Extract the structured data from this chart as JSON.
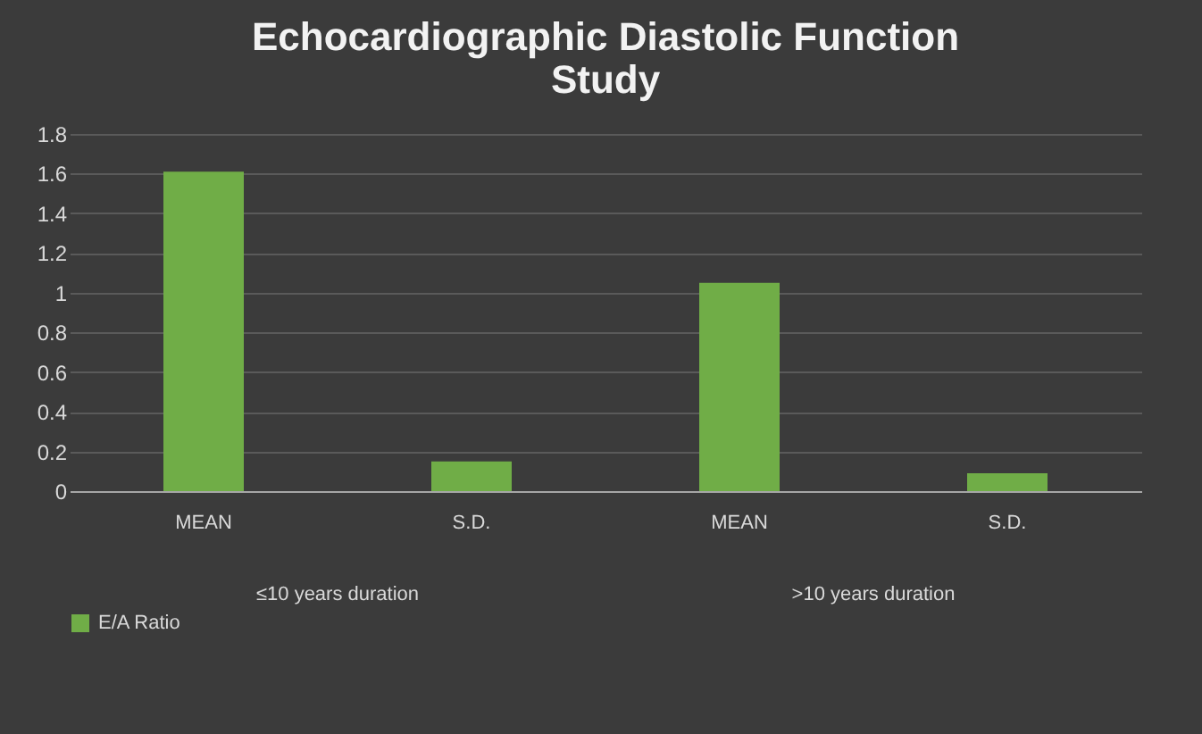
{
  "chart_data": {
    "type": "bar",
    "title": "Echocardiographic Diastolic Function Study",
    "categories": [
      "MEAN",
      "S.D.",
      "MEAN",
      "S.D."
    ],
    "series": [
      {
        "name": "E/A Ratio",
        "color": "#70ad47",
        "values": [
          1.61,
          0.15,
          1.05,
          0.09
        ]
      }
    ],
    "annotations": [
      "≤10 years duration",
      ">10 years duration"
    ],
    "ylim": [
      0,
      1.8
    ],
    "yticks": [
      0,
      0.2,
      0.4,
      0.6,
      0.8,
      1,
      1.2,
      1.4,
      1.6,
      1.8
    ],
    "grid": "y",
    "legend": "bottom"
  }
}
